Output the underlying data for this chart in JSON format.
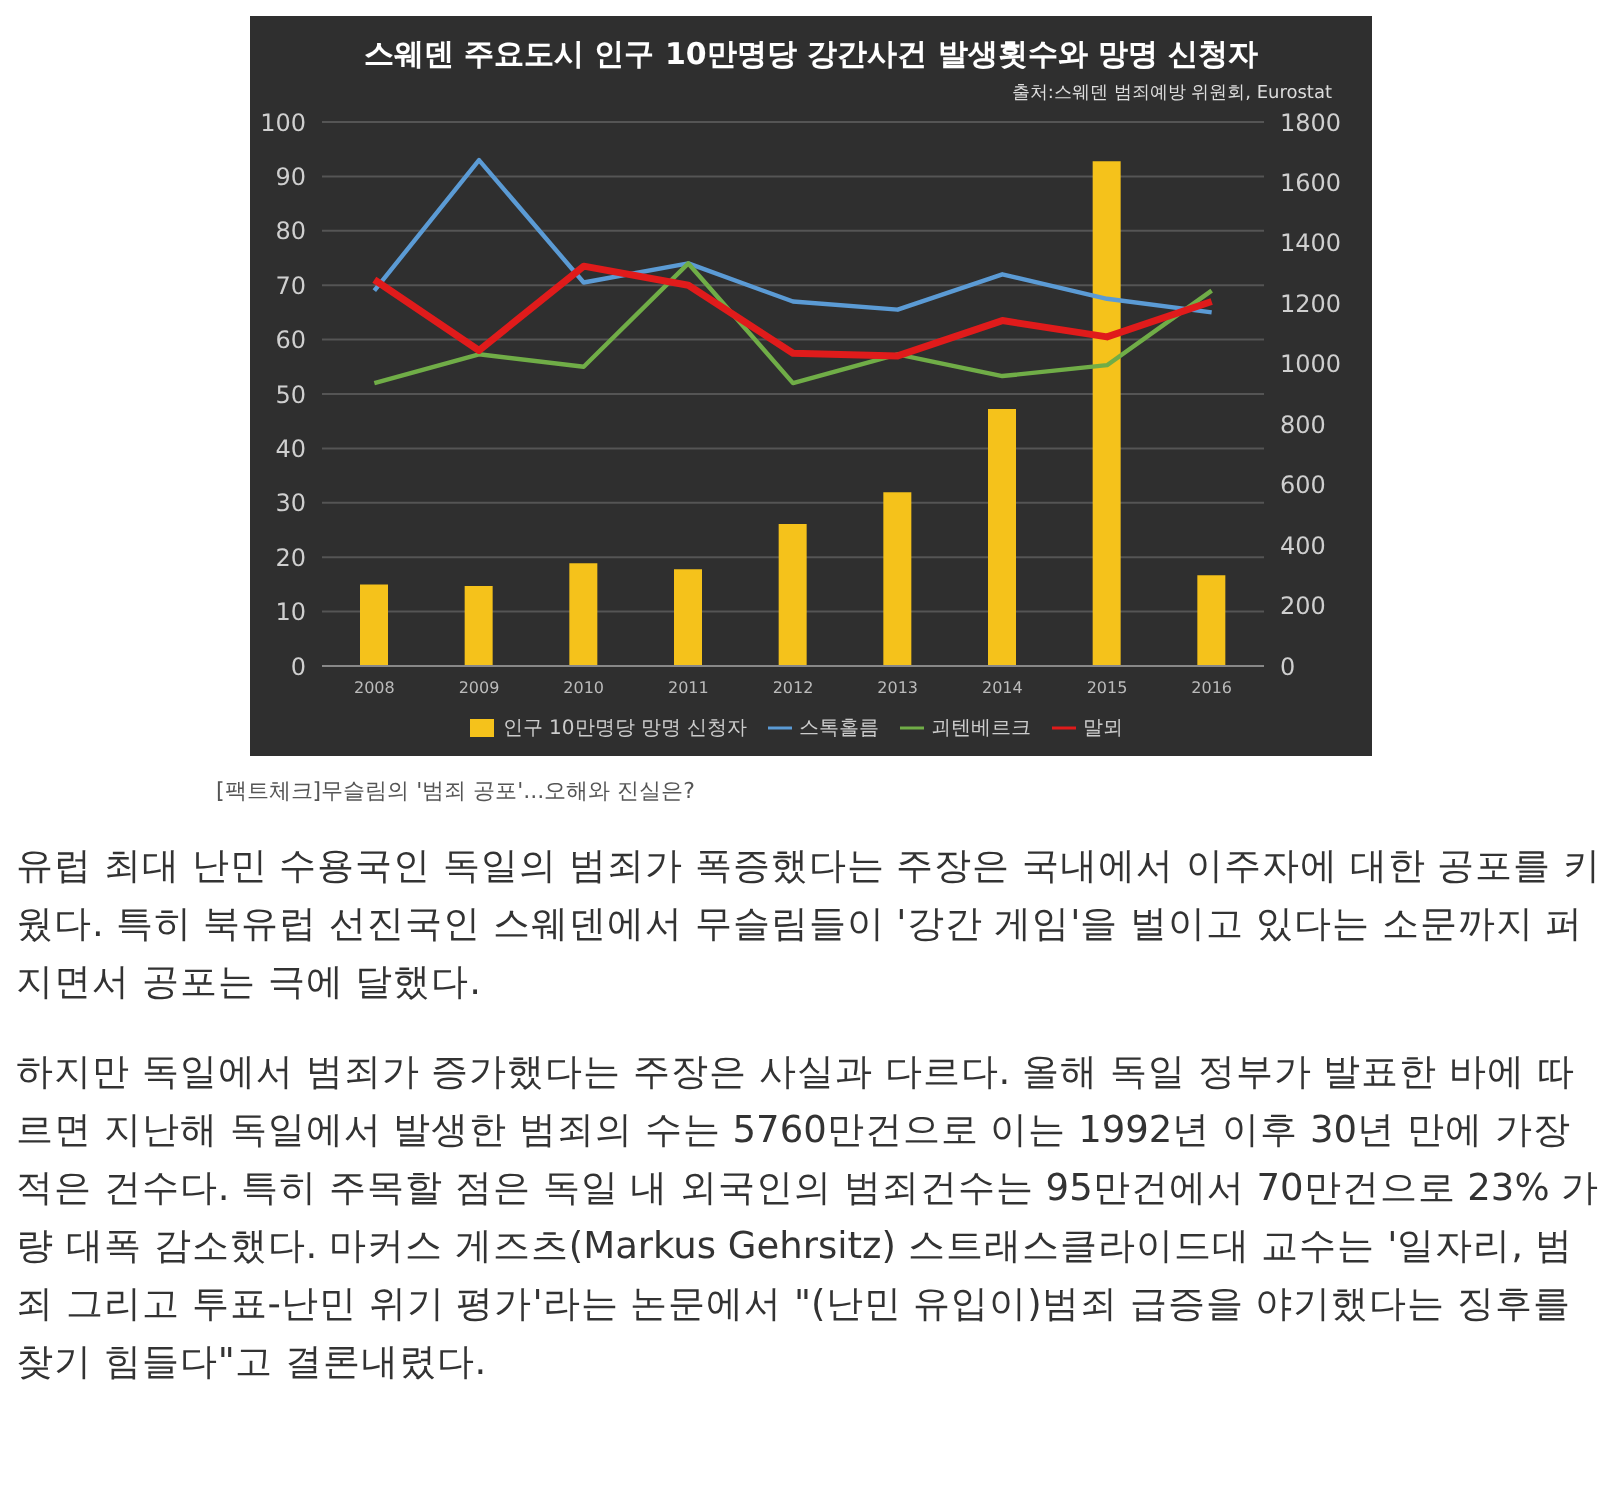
{
  "chart_data": {
    "type": "bar",
    "title": "스웨덴 주요도시 인구 10만명당 강간사건 발생횟수와 망명 신청자",
    "subtitle": "출처:스웨덴 범죄예방 위원회, Eurostat",
    "categories": [
      "2008",
      "2009",
      "2010",
      "2011",
      "2012",
      "2013",
      "2014",
      "2015",
      "2016"
    ],
    "series": [
      {
        "name": "인구 10만명당 망명 신청자",
        "axis": "y2",
        "color": "#f5c21b",
        "values": [
          270,
          265,
          340,
          320,
          470,
          575,
          850,
          1670,
          300
        ]
      },
      {
        "name": "스톡홀름",
        "type": "line",
        "color": "#5b9bd5",
        "values": [
          69,
          93,
          70.5,
          74,
          67,
          65.5,
          72,
          67.5,
          65
        ]
      },
      {
        "name": "괴텐베르크",
        "type": "line",
        "color": "#70ad47",
        "values": [
          52,
          57.3,
          55,
          74,
          52,
          57.3,
          53.3,
          55.3,
          69
        ]
      },
      {
        "name": "말뫼",
        "type": "line",
        "color": "#e01b1b",
        "values": [
          71,
          58,
          73.5,
          70,
          57.5,
          57,
          63.5,
          60.5,
          67
        ]
      }
    ],
    "ylim": [
      0,
      100
    ],
    "yticks": [
      0,
      10,
      20,
      30,
      40,
      50,
      60,
      70,
      80,
      90,
      100
    ],
    "y2lim": [
      0,
      1800
    ],
    "y2ticks": [
      0,
      200,
      400,
      600,
      800,
      1000,
      1200,
      1400,
      1600,
      1800
    ],
    "grid": "y",
    "legend": "bottom",
    "marker": "none",
    "line_style": "solid",
    "annotations": [
      "[팩트체크]무슬림의 '범죄 공포'...오해와 진실은?",
      "유럽 최대 난민 수용국인 독일의 범죄가 폭증했다는 주장은 국내에서 이주자에 대한 공포를 키웠다. 특히 북유럽 선진국인 스웨덴에서 무슬림들이 '강간 게임'을 벌이고 있다는 소문까지 퍼지면서 공포는 극에 달했다.",
      "하지만 독일에서 범죄가 증가했다는 주장은 사실과 다르다. 올해 독일 정부가 발표한 바에 따르면 지난해 독일에서 발생한 범죄의 수는 5760만건으로 이는 1992년 이후 30년 만에 가장 적은 건수다. 특히 주목할 점은 독일 내 외국인의 범죄건수는 95만건에서 70만건으로 23% 가량 대폭 감소했다. 마커스 게즈츠(Markus Gehrsitz) 스트래스클라이드대 교수는 '일자리, 범죄 그리고 투표-난민 위기 평가'라는 논문에서 \"(난민 유입이)범죄 급증을 야기했다는 징후를 찾기 힘들다\"고 결론내렸다."
    ]
  }
}
